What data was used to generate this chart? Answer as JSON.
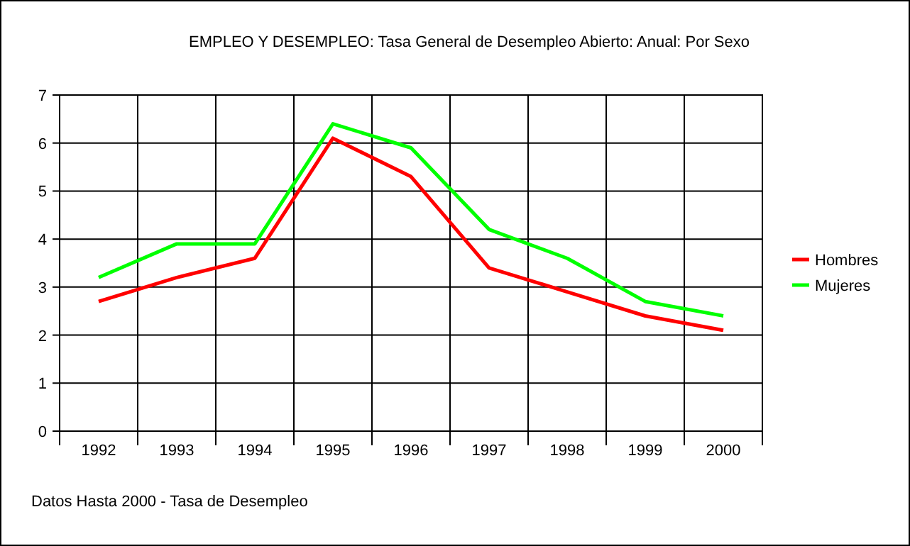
{
  "chart_data": {
    "type": "line",
    "title": "EMPLEO Y DESEMPLEO: Tasa General de Desempleo Abierto: Anual: Por Sexo",
    "categories": [
      "1992",
      "1993",
      "1994",
      "1995",
      "1996",
      "1997",
      "1998",
      "1999",
      "2000"
    ],
    "series": [
      {
        "name": "Hombres",
        "color": "#ff0000",
        "values": [
          2.7,
          3.2,
          3.6,
          6.1,
          5.3,
          3.4,
          2.9,
          2.4,
          2.1
        ]
      },
      {
        "name": "Mujeres",
        "color": "#00ff00",
        "values": [
          3.2,
          3.9,
          3.9,
          6.4,
          5.9,
          4.2,
          3.6,
          2.7,
          2.4
        ]
      }
    ],
    "ylim": [
      0,
      7
    ],
    "yticks": [
      0,
      1,
      2,
      3,
      4,
      5,
      6,
      7
    ],
    "grid": true,
    "legend": "right",
    "marker": "none",
    "line_style": "solid",
    "annotations": [
      "Datos Hasta 2000 - Tasa de Desempleo"
    ]
  }
}
